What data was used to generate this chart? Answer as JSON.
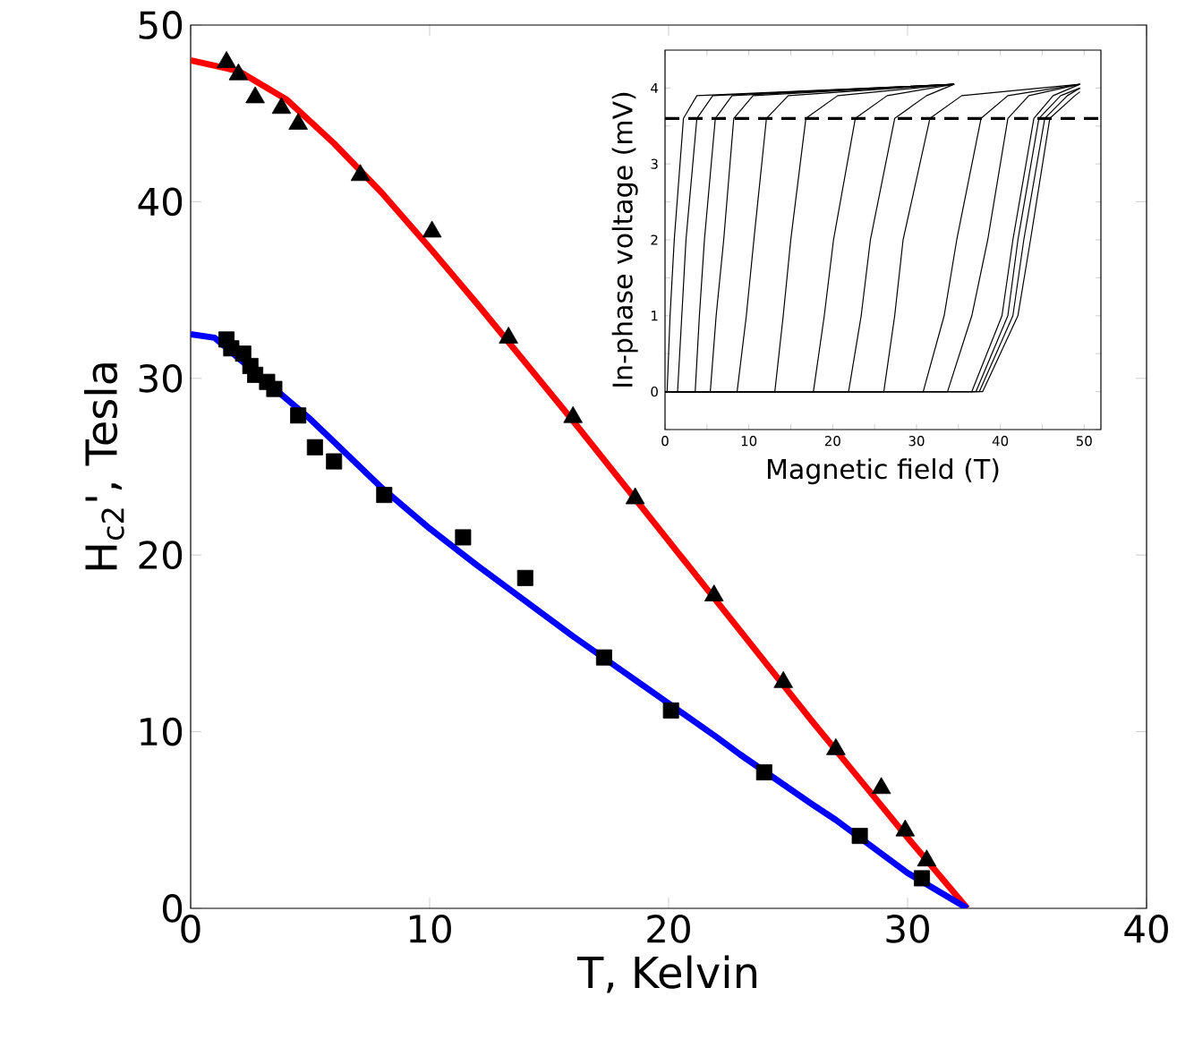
{
  "chart_data": [
    {
      "type": "scatter",
      "xlabel": "T, Kelvin",
      "ylabel": "H$_{c2}$', Tesla",
      "xlim": [
        0,
        40
      ],
      "xticks": [
        0,
        10,
        20,
        30,
        40
      ],
      "ylim": [
        0,
        50
      ],
      "yticks": [
        0,
        10,
        20,
        30,
        40,
        50
      ],
      "series": [
        {
          "type": "line",
          "color": "#ff0000",
          "x": [
            0,
            2,
            4,
            6,
            8,
            10,
            12,
            14,
            16,
            18,
            20,
            22,
            24,
            26,
            28,
            30,
            32.5
          ],
          "values": [
            48.0,
            47.4,
            45.8,
            43.3,
            40.5,
            37.4,
            34.2,
            30.9,
            27.6,
            24.2,
            20.8,
            17.4,
            14.0,
            10.6,
            7.3,
            4.0,
            0
          ]
        },
        {
          "type": "line",
          "color": "#0000ff",
          "x": [
            0,
            1,
            5,
            6,
            8,
            10,
            12,
            14,
            16,
            18,
            20,
            22,
            23,
            26,
            27,
            30,
            32.5
          ],
          "values": [
            32.5,
            32.3,
            27.7,
            26.4,
            23.8,
            21.5,
            19.4,
            17.4,
            15.4,
            13.5,
            11.6,
            9.7,
            8.7,
            5.9,
            5.0,
            2.0,
            0
          ]
        },
        {
          "type": "scatter",
          "marker": "triangle",
          "color": "#000000",
          "x": [
            1.5,
            2.0,
            2.7,
            3.8,
            4.5,
            7.1,
            10.1,
            13.3,
            16.0,
            18.6,
            21.9,
            24.8,
            27.0,
            28.9,
            29.9,
            30.8
          ],
          "values": [
            47.9,
            47.2,
            45.9,
            45.3,
            44.4,
            41.5,
            38.3,
            32.3,
            27.8,
            23.2,
            17.7,
            12.8,
            9.0,
            6.8,
            4.4,
            2.7
          ]
        },
        {
          "type": "scatter",
          "marker": "square",
          "color": "#000000",
          "x": [
            1.5,
            1.7,
            2.2,
            2.5,
            2.7,
            3.2,
            3.5,
            4.5,
            5.2,
            6.0,
            8.1,
            11.4,
            14.0,
            17.3,
            20.1,
            24.0,
            28.0,
            30.6
          ],
          "values": [
            32.2,
            31.7,
            31.4,
            30.7,
            30.2,
            29.8,
            29.4,
            27.9,
            26.1,
            25.3,
            23.4,
            21.0,
            18.7,
            14.2,
            11.2,
            7.7,
            4.1,
            1.7
          ]
        }
      ]
    },
    {
      "type": "line",
      "xlabel": "Magnetic field (T)",
      "ylabel": "In-phase voltage (mV)",
      "xlim": [
        0,
        52
      ],
      "xticks": [
        0,
        {
          "value": 5,
          "label": null
        },
        10,
        {
          "value": 15,
          "label": null
        },
        20,
        {
          "value": 25,
          "label": null
        },
        30,
        {
          "value": 35,
          "label": null
        },
        40,
        {
          "value": 45,
          "label": null
        },
        50
      ],
      "ylim": [
        -0.5,
        4.5
      ],
      "yticks": [
        {
          "value": -0.5,
          "label": null
        },
        0,
        {
          "value": 0.5,
          "label": null
        },
        1,
        {
          "value": 1.5,
          "label": null
        },
        2,
        {
          "value": 2.5,
          "label": null
        },
        3,
        {
          "value": 3.5,
          "label": null
        },
        4
      ],
      "ref_lines": [
        {
          "axis": "y",
          "value": 3.6,
          "color": "#000000",
          "line_style": "dashed"
        }
      ],
      "series": [
        {
          "color": "#000000",
          "x": [
            0,
            0.25,
            0.6,
            1.1,
            2.2,
            3.8,
            34.5
          ],
          "values": [
            0,
            0,
            1,
            2,
            3.6,
            3.9,
            4.05
          ]
        },
        {
          "color": "#000000",
          "x": [
            0,
            1.5,
            2.0,
            2.5,
            3.8,
            5.7,
            34.5
          ],
          "values": [
            0,
            0,
            1,
            2,
            3.6,
            3.9,
            4.05
          ]
        },
        {
          "color": "#000000",
          "x": [
            0,
            3.6,
            4.1,
            4.7,
            6.0,
            8.0,
            34.5
          ],
          "values": [
            0,
            0,
            1,
            2,
            3.6,
            3.9,
            4.05
          ]
        },
        {
          "color": "#000000",
          "x": [
            0,
            5.4,
            6.1,
            7.0,
            8.2,
            10.5,
            34.5
          ],
          "values": [
            0,
            0,
            1,
            2,
            3.6,
            3.9,
            4.05
          ]
        },
        {
          "color": "#000000",
          "x": [
            0,
            8.6,
            9.7,
            10.6,
            12.1,
            14.7,
            34.5
          ],
          "values": [
            0,
            0,
            1,
            2,
            3.6,
            3.9,
            4.05
          ]
        },
        {
          "color": "#000000",
          "x": [
            0,
            13.1,
            14.1,
            15.0,
            16.8,
            20.6,
            34.5
          ],
          "values": [
            0,
            0,
            1,
            2,
            3.6,
            3.9,
            4.05
          ]
        },
        {
          "color": "#000000",
          "x": [
            0,
            17.7,
            19.0,
            20.1,
            22.7,
            26.5,
            34.5
          ],
          "values": [
            0,
            0,
            1,
            2,
            3.6,
            3.9,
            4.05
          ]
        },
        {
          "color": "#000000",
          "x": [
            0,
            21.9,
            23.4,
            24.5,
            27.4,
            31.2,
            34.5
          ],
          "values": [
            0,
            0,
            1,
            2,
            3.6,
            3.9,
            4.05
          ]
        },
        {
          "color": "#000000",
          "x": [
            0,
            26.1,
            27.4,
            28.4,
            31.6,
            35.4,
            49.5
          ],
          "values": [
            0,
            0,
            1,
            2,
            3.6,
            3.9,
            4.05
          ]
        },
        {
          "color": "#000000",
          "x": [
            0,
            30.8,
            33.3,
            34.8,
            37.7,
            40.9,
            49.5
          ],
          "values": [
            0,
            0,
            1,
            2,
            3.6,
            3.9,
            4.05
          ]
        },
        {
          "color": "#000000",
          "x": [
            0,
            33.7,
            36.6,
            38.5,
            40.9,
            43.4,
            49.5
          ],
          "values": [
            0,
            0,
            1,
            2,
            3.6,
            3.9,
            4.05
          ]
        },
        {
          "color": "#000000",
          "x": [
            0,
            36.6,
            40.2,
            41.5,
            44.0,
            46.3,
            49.5
          ],
          "values": [
            0,
            0,
            1,
            2,
            3.6,
            3.9,
            4.05
          ]
        },
        {
          "color": "#000000",
          "x": [
            0,
            37.1,
            40.9,
            42.1,
            44.6,
            47.2,
            49.5
          ],
          "values": [
            0,
            0,
            1,
            2,
            3.6,
            3.9,
            4.0
          ]
        },
        {
          "color": "#000000",
          "x": [
            0,
            37.5,
            41.5,
            42.8,
            45.3,
            48.0,
            49.5
          ],
          "values": [
            0,
            0,
            1,
            2,
            3.6,
            3.9,
            4.0
          ]
        },
        {
          "color": "#000000",
          "x": [
            0,
            37.9,
            42.1,
            43.6,
            45.9,
            48.9,
            49.5
          ],
          "values": [
            0,
            0,
            1,
            2,
            3.6,
            3.9,
            3.95
          ]
        }
      ]
    }
  ]
}
